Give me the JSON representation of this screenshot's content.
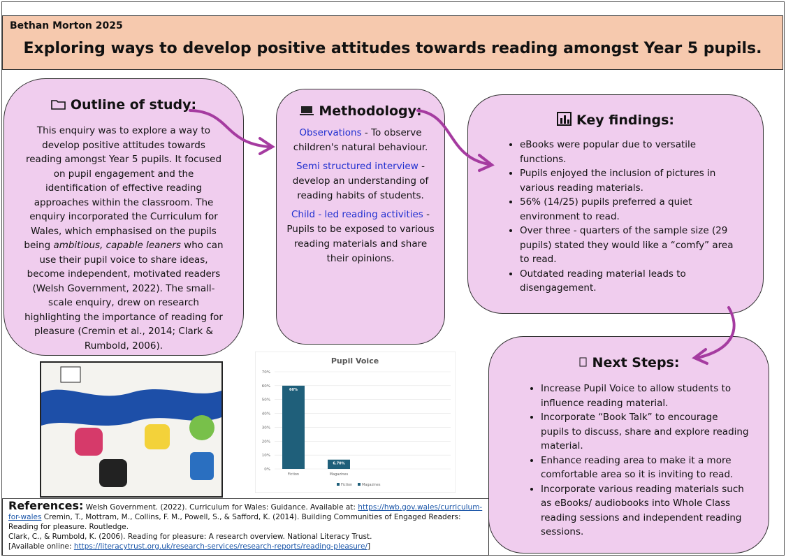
{
  "header": {
    "author": "Bethan Morton 2025",
    "title": "Exploring ways to develop positive attitudes towards reading amongst Year 5 pupils."
  },
  "outline": {
    "heading": "Outline of study:",
    "before": "This enquiry was to explore a way to develop positive attitudes towards reading amongst Year 5 pupils. It focused on pupil engagement and the identification of effective reading approaches within the classroom. The enquiry incorporated the Curriculum for Wales, which emphasised on the pupils being ",
    "emphasis": "ambitious, capable leaners",
    "after": " who can use their pupil voice to share ideas, become independent, motivated readers (Welsh Government, 2022). The small-scale enquiry, drew on research highlighting the importance of reading for pleasure (Cremin et al., 2014; Clark & Rumbold, 2006)."
  },
  "methodology": {
    "heading": "Methodology:",
    "items": [
      {
        "label": "Observations",
        "text": " - To observe children's natural behaviour."
      },
      {
        "label": "Semi structured interview",
        "text": " - develop an understanding of reading habits of students."
      },
      {
        "label": "Child - led reading activities",
        "text": " - Pupils to be exposed to various reading materials and share their opinions."
      }
    ]
  },
  "key_findings": {
    "heading": "Key findings:",
    "items": [
      "eBooks were popular due to versatile functions.",
      "Pupils enjoyed the inclusion of pictures in various reading materials.",
      "56% (14/25) pupils preferred a quiet environment to read.",
      "Over three - quarters of the sample size (29 pupils) stated they would like a “comfy” area to read.",
      "Outdated reading material leads to disengagement."
    ]
  },
  "next_steps": {
    "heading": "Next Steps:",
    "items": [
      "Increase Pupil Voice to allow students to influence reading material.",
      "Incorporate “Book Talk” to encourage pupils to discuss, share and explore reading material.",
      "Enhance reading area to make it a more comfortable area so it is inviting to read.",
      "Incorporate various reading materials such as eBooks/ audiobooks into Whole Class reading sessions and independent reading sessions."
    ]
  },
  "chart_data": {
    "type": "bar",
    "title": "Pupil Voice",
    "categories": [
      "Fiction",
      "Magazines"
    ],
    "values": [
      60,
      6.7
    ],
    "value_labels": [
      "60%",
      "6.70%"
    ],
    "color": "#1f5f7a",
    "ylim": [
      0,
      70
    ],
    "yticks": [
      {
        "value": 0,
        "label": "0%"
      },
      {
        "value": 10,
        "label": "10%"
      },
      {
        "value": 20,
        "label": "20%"
      },
      {
        "value": 30,
        "label": "30%"
      },
      {
        "value": 40,
        "label": "40%"
      },
      {
        "value": 50,
        "label": "50%"
      },
      {
        "value": 60,
        "label": "60%"
      },
      {
        "value": 70,
        "label": "70%"
      }
    ],
    "grid": true,
    "legend": "bottom"
  },
  "references": {
    "heading": "References:",
    "t1": "Welsh Government. (2022). Curriculum for Wales: Guidance. Available at: ",
    "link1": "https://hwb.gov.wales/curriculum-for-wales",
    "t2": " Cremin, T., Mottram, M., Collins, F. M., Powell, S., & Safford, K. (2014). Building Communities of Engaged Readers: Reading for pleasure. Routledge.",
    "t3": "Clark, C., & Rumbold, K. (2006). Reading for pleasure: A research overview. National Literacy Trust.",
    "t4": "[Available online: ",
    "link2": "https://literacytrust.org.uk/research-services/research-reports/reading-pleasure/",
    "t5": "]"
  }
}
